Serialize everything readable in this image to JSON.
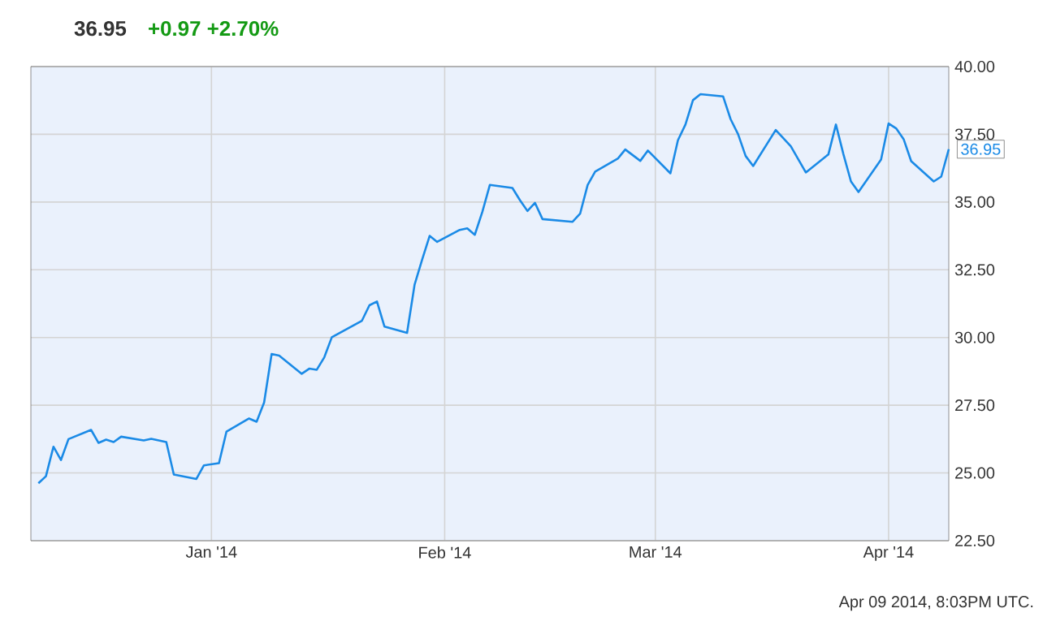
{
  "chart_data": {
    "type": "line",
    "title": "36.95",
    "subtitle": "+0.97  +2.70%",
    "annotations": [
      {
        "text": "36.95",
        "x": "2014-04-09",
        "y": 36.95
      },
      "Apr 09 2014, 8:03PM UTC."
    ],
    "x": [
      "2013-12-09",
      "2013-12-10",
      "2013-12-11",
      "2013-12-12",
      "2013-12-13",
      "2013-12-16",
      "2013-12-17",
      "2013-12-18",
      "2013-12-19",
      "2013-12-20",
      "2013-12-23",
      "2013-12-24",
      "2013-12-26",
      "2013-12-27",
      "2013-12-30",
      "2013-12-31",
      "2014-01-02",
      "2014-01-03",
      "2014-01-06",
      "2014-01-07",
      "2014-01-08",
      "2014-01-09",
      "2014-01-10",
      "2014-01-13",
      "2014-01-14",
      "2014-01-15",
      "2014-01-16",
      "2014-01-17",
      "2014-01-21",
      "2014-01-22",
      "2014-01-23",
      "2014-01-24",
      "2014-01-27",
      "2014-01-28",
      "2014-01-29",
      "2014-01-30",
      "2014-01-31",
      "2014-02-03",
      "2014-02-04",
      "2014-02-05",
      "2014-02-06",
      "2014-02-07",
      "2014-02-10",
      "2014-02-11",
      "2014-02-12",
      "2014-02-13",
      "2014-02-14",
      "2014-02-18",
      "2014-02-19",
      "2014-02-20",
      "2014-02-21",
      "2014-02-24",
      "2014-02-25",
      "2014-02-27",
      "2014-02-28",
      "2014-03-03",
      "2014-03-04",
      "2014-03-05",
      "2014-03-06",
      "2014-03-07",
      "2014-03-10",
      "2014-03-11",
      "2014-03-12",
      "2014-03-13",
      "2014-03-14",
      "2014-03-17",
      "2014-03-19",
      "2014-03-21",
      "2014-03-24",
      "2014-03-25",
      "2014-03-26",
      "2014-03-27",
      "2014-03-28",
      "2014-03-31",
      "2014-04-01",
      "2014-04-02",
      "2014-04-03",
      "2014-04-04",
      "2014-04-07",
      "2014-04-08",
      "2014-04-09"
    ],
    "series": [
      {
        "color": "#1a8ae6",
        "values": [
          24.62,
          24.88,
          25.97,
          25.48,
          26.25,
          26.59,
          26.11,
          26.23,
          26.14,
          26.34,
          26.2,
          26.26,
          26.14,
          24.94,
          24.78,
          25.28,
          25.36,
          26.53,
          27.01,
          26.89,
          27.6,
          29.39,
          29.33,
          28.66,
          28.85,
          28.81,
          29.27,
          30.01,
          30.62,
          31.19,
          31.33,
          30.4,
          30.17,
          31.95,
          32.87,
          33.75,
          33.53,
          33.97,
          34.03,
          33.79,
          34.63,
          35.63,
          35.52,
          35.07,
          34.67,
          34.97,
          34.37,
          34.27,
          34.57,
          35.63,
          36.12,
          36.6,
          36.94,
          36.52,
          36.9,
          36.06,
          37.28,
          37.86,
          38.76,
          38.98,
          38.9,
          38.06,
          37.5,
          36.7,
          36.33,
          37.66,
          37.06,
          36.09,
          36.76,
          37.86,
          36.76,
          35.76,
          35.37,
          36.57,
          37.9,
          37.72,
          37.32,
          36.51,
          35.76,
          35.94,
          36.95
        ]
      }
    ],
    "xlim": [
      "2013-12-08",
      "2014-04-09"
    ],
    "xticks": [
      {
        "value": "2014-01-01",
        "label": "Jan '14"
      },
      {
        "value": "2014-02-01",
        "label": "Feb '14"
      },
      {
        "value": "2014-03-01",
        "label": "Mar '14"
      },
      {
        "value": "2014-04-01",
        "label": "Apr '14"
      }
    ],
    "ylim": [
      22.5,
      40
    ],
    "yticks": [
      {
        "value": 22.5,
        "label": "22.50"
      },
      {
        "value": 25,
        "label": "25.00"
      },
      {
        "value": 27.5,
        "label": "27.50"
      },
      {
        "value": 30,
        "label": "30.00"
      },
      {
        "value": 32.5,
        "label": "32.50"
      },
      {
        "value": 35,
        "label": "35.00"
      },
      {
        "value": 37.5,
        "label": "37.50"
      },
      {
        "value": 40,
        "label": "40.00"
      }
    ],
    "grid": true,
    "marker": "none",
    "line_style": "solid"
  }
}
